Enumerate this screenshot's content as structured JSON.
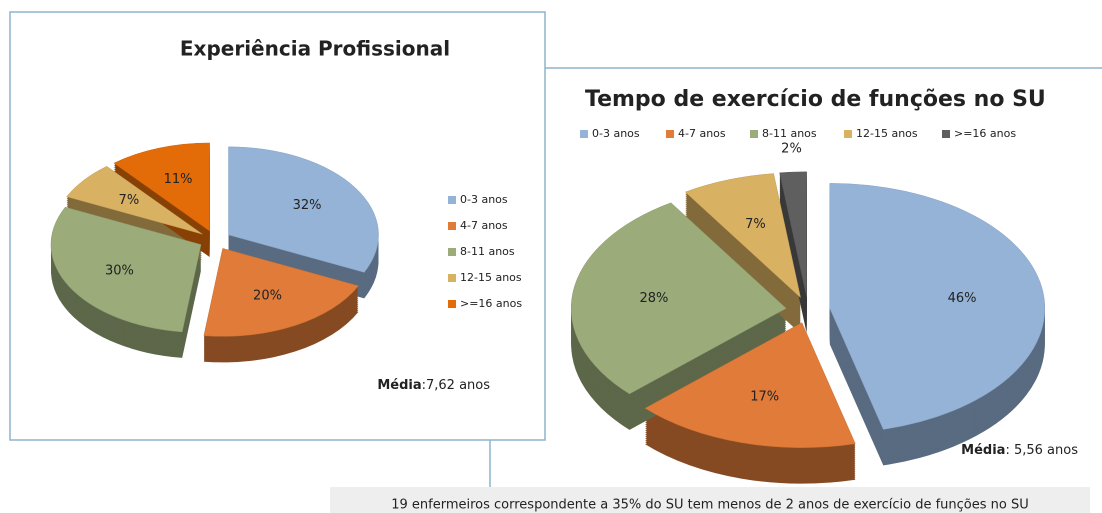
{
  "chart_data": [
    {
      "type": "pie",
      "title": "Experiência Profissional",
      "categories": [
        "0-3 anos",
        "4-7 anos",
        "8-11 anos",
        "12-15 anos",
        ">=16 anos"
      ],
      "values": [
        32,
        20,
        30,
        7,
        11
      ],
      "value_labels": [
        "32%",
        "20%",
        "30%",
        "7%",
        "11%"
      ],
      "colors": [
        "#95b3d7",
        "#e07b39",
        "#9bab7a",
        "#d8b163",
        "#e36c09"
      ],
      "legend": "right",
      "note_label": "Média",
      "note_value": ":7,62 anos"
    },
    {
      "type": "pie",
      "title": "Tempo de exercício de funções no SU",
      "categories": [
        "0-3 anos",
        "4-7 anos",
        "8-11 anos",
        "12-15 anos",
        ">=16 anos"
      ],
      "values": [
        46,
        17,
        28,
        7,
        2
      ],
      "value_labels": [
        "46%",
        "17%",
        "28%",
        "7%",
        "2%"
      ],
      "colors": [
        "#95b3d7",
        "#e07b39",
        "#9bab7a",
        "#d8b163",
        "#5f5f5f"
      ],
      "legend": "top",
      "note_label": "Média",
      "note_value": ": 5,56 anos"
    }
  ],
  "footer": "19 enfermeiros correspondente a 35% do SU tem menos de 2 anos de exercício de funções no SU"
}
